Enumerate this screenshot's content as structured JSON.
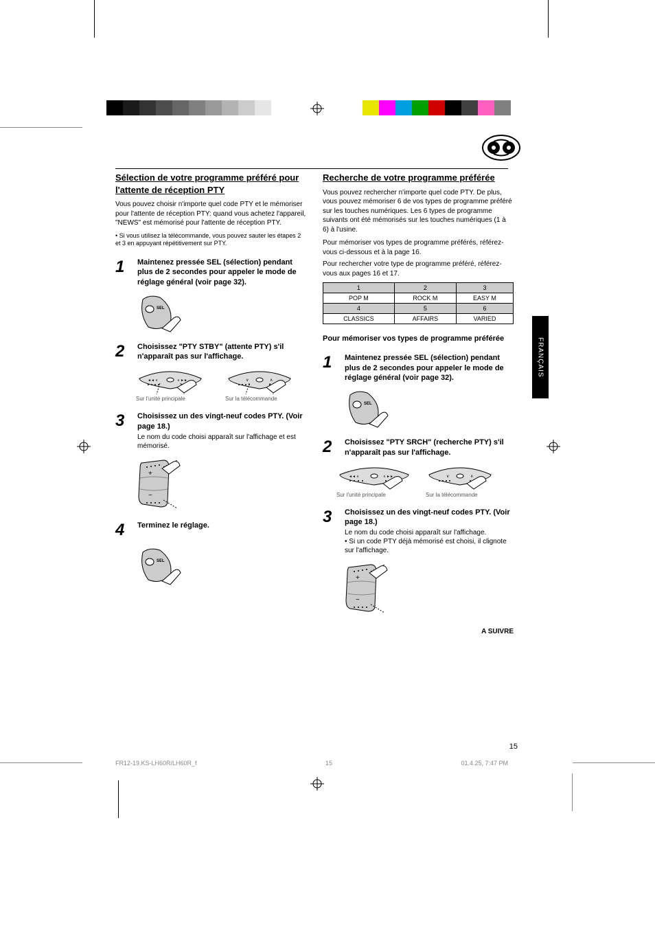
{
  "graybar_widths": [
    24,
    24,
    24,
    24,
    24,
    24,
    24,
    24,
    24,
    24
  ],
  "graybar_colors": [
    "#000000",
    "#1a1a1a",
    "#333333",
    "#4d4d4d",
    "#666666",
    "#808080",
    "#999999",
    "#b3b3b3",
    "#cccccc",
    "#e6e6e6"
  ],
  "colorbar_widths": [
    24,
    24,
    24,
    24,
    24,
    24,
    24,
    24,
    24,
    24
  ],
  "colorbar_colors": [
    "#e6e600",
    "#ff00ff",
    "#00a0e0",
    "#00a000",
    "#d00000",
    "#000000",
    "#404040",
    "#ff60c0",
    "#808080",
    "#ffffff"
  ],
  "left": {
    "heading": "Sélection de votre programme préféré pour l'attente de réception PTY",
    "intro": "Vous pouvez choisir n'importe quel code PTY et le mémoriser pour l'attente de réception PTY: quand vous achetez l'appareil, \"NEWS\" est mémorisé pour l'attente de réception PTY.",
    "note": "• Si vous utilisez la télécommande, vous pouvez sauter les étapes 2 et 3 en appuyant répétitivement sur PTY.",
    "steps": [
      {
        "n": "1",
        "title": "Maintenez pressée SEL (sélection) pendant plus de 2 secondes pour appeler le mode de réglage général (voir page 32).",
        "body": ""
      },
      {
        "n": "2",
        "title": "Choisissez \"PTY STBY\" (attente PTY) s'il n'apparaît pas sur l'affichage.",
        "body": ""
      },
      {
        "n": "3",
        "title": "Choisissez un des vingt-neuf codes PTY. (Voir page 18.)",
        "body": "Le nom du code choisi apparaît sur l'affichage et est mémorisé."
      },
      {
        "n": "4",
        "title": "Terminez le réglage.",
        "body": ""
      }
    ]
  },
  "right": {
    "heading": "Recherche de votre programme préférée",
    "intro": "Vous pouvez rechercher n'importe quel code PTY. De plus, vous pouvez mémoriser 6 de vos types de programme préféré sur les touches numériques. Les 6 types de programme suivants ont été mémorisés sur les touches numériques (1 à 6) à l'usine.",
    "hint1": "Pour mémoriser vos types de programme préférés, référez-vous ci-dessous et à la page 16.",
    "hint2": "Pour rechercher votre type de programme préféré, référez-vous aux pages 16 et 17.",
    "table": {
      "header_cells": [
        "1",
        "2",
        "3"
      ],
      "row1_cells": [
        "POP M",
        "ROCK M",
        "EASY M"
      ],
      "header2_cells": [
        "4",
        "5",
        "6"
      ],
      "row2_cells": [
        "CLASSICS",
        "AFFAIRS",
        "VARIED"
      ]
    },
    "subhead": "Pour mémoriser vos types de programme préférée",
    "steps": [
      {
        "n": "1",
        "title": "Maintenez pressée SEL (sélection) pendant plus de 2 secondes pour appeler le mode de réglage général (voir page 32).",
        "body": ""
      },
      {
        "n": "2",
        "title": "Choisissez \"PTY SRCH\" (recherche PTY) s'il n'apparaît pas sur l'affichage.",
        "body": ""
      },
      {
        "n": "3",
        "title": "Choisissez un des vingt-neuf codes PTY. (Voir page 18.)",
        "body": "Le nom du code choisi apparaît sur l'affichage.\n• Si un code PTY déjà mémorisé est choisi, il clignote sur l'affichage."
      }
    ],
    "continue": "A SUIVRE"
  },
  "lang_tab": "FRANÇAIS",
  "page_number": "15",
  "footer_left": "FR12-19.KS-LH60R/LH60R_f",
  "footer_center": "15",
  "footer_right": "01.4.25, 7:47 PM",
  "step_illustration_caption_2_note": "Sur l'unité principale",
  "step_illustration_2_remote": "Sur la télécommande"
}
